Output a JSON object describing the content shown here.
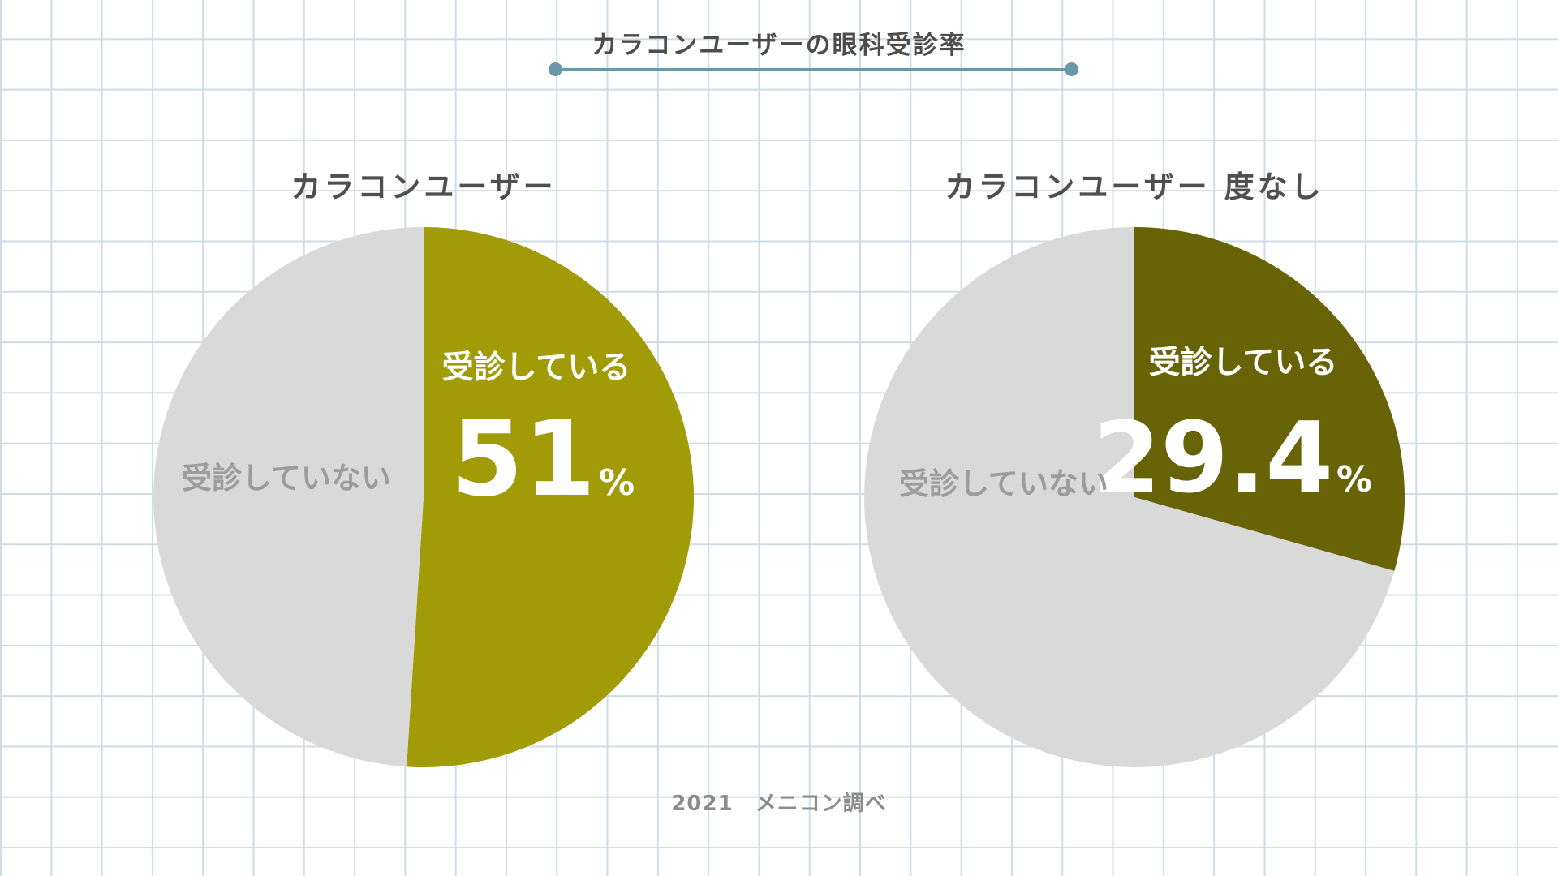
{
  "title": "カラコンユーザーの眼科受診率",
  "source": "2021　メニコン調べ",
  "colors": {
    "rule": "#6a98a6",
    "grid": "#cfdce4",
    "background": "#ffffff"
  },
  "chart_data": [
    {
      "type": "pie",
      "title": "カラコンユーザー",
      "slices": [
        {
          "label": "受診している",
          "value": 51,
          "unit": "%",
          "display": "51",
          "color": "#a09b06",
          "text_color": "#ffffff"
        },
        {
          "label": "受診していない",
          "value": 49,
          "unit": "%",
          "color": "#d9d9d9",
          "text_color": "#9c9c9c"
        }
      ]
    },
    {
      "type": "pie",
      "title": "カラコンユーザー 度なし",
      "slices": [
        {
          "label": "受診している",
          "value": 29.4,
          "unit": "%",
          "display": "29.4",
          "color": "#686306",
          "text_color": "#ffffff"
        },
        {
          "label": "受診していない",
          "value": 70.6,
          "unit": "%",
          "color": "#d9d9d9",
          "text_color": "#9c9c9c"
        }
      ]
    }
  ]
}
